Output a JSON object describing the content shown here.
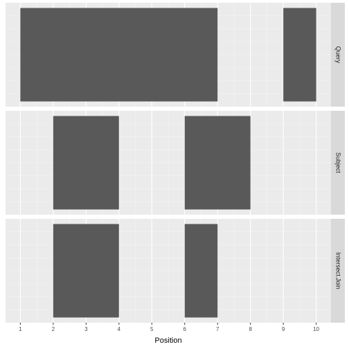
{
  "chart_data": {
    "type": "interval",
    "x_label": "Position",
    "xlim": [
      0.55,
      10.45
    ],
    "xticks": [
      1,
      2,
      3,
      4,
      5,
      6,
      7,
      8,
      9,
      10
    ],
    "color": "#595959",
    "grid": true,
    "facets": [
      {
        "label": "Query",
        "intervals": [
          {
            "start": 1,
            "end": 7
          },
          {
            "start": 9,
            "end": 10
          }
        ]
      },
      {
        "label": "Subject",
        "intervals": [
          {
            "start": 2,
            "end": 4
          },
          {
            "start": 6,
            "end": 8
          }
        ]
      },
      {
        "label": "Intersect.Join",
        "intervals": [
          {
            "start": 2,
            "end": 4
          },
          {
            "start": 6,
            "end": 7
          }
        ]
      }
    ]
  }
}
